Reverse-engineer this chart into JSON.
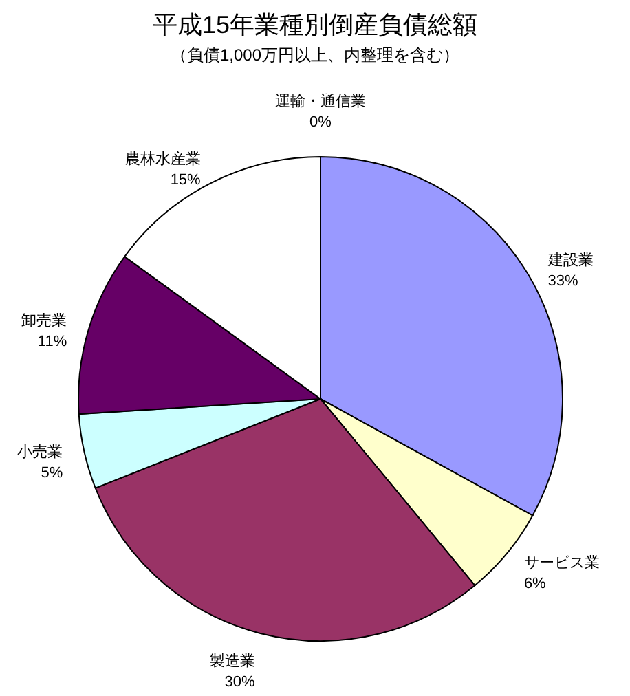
{
  "chart_data": {
    "type": "pie",
    "title": "平成15年業種別倒産負債総額",
    "subtitle": "（負債1,000万円以上、内整理を含む）",
    "categories": [
      "建設業",
      "サービス業",
      "製造業",
      "小売業",
      "卸売業",
      "農林水産業",
      "運輸・通信業"
    ],
    "values": [
      33,
      6,
      30,
      5,
      11,
      15,
      0
    ],
    "value_labels": [
      "33%",
      "6%",
      "30%",
      "5%",
      "11%",
      "15%",
      "0%"
    ],
    "colors": [
      "#9999ff",
      "#ffffcc",
      "#993366",
      "#ccffff",
      "#660066",
      "#ffffff",
      "#0066cc"
    ]
  }
}
